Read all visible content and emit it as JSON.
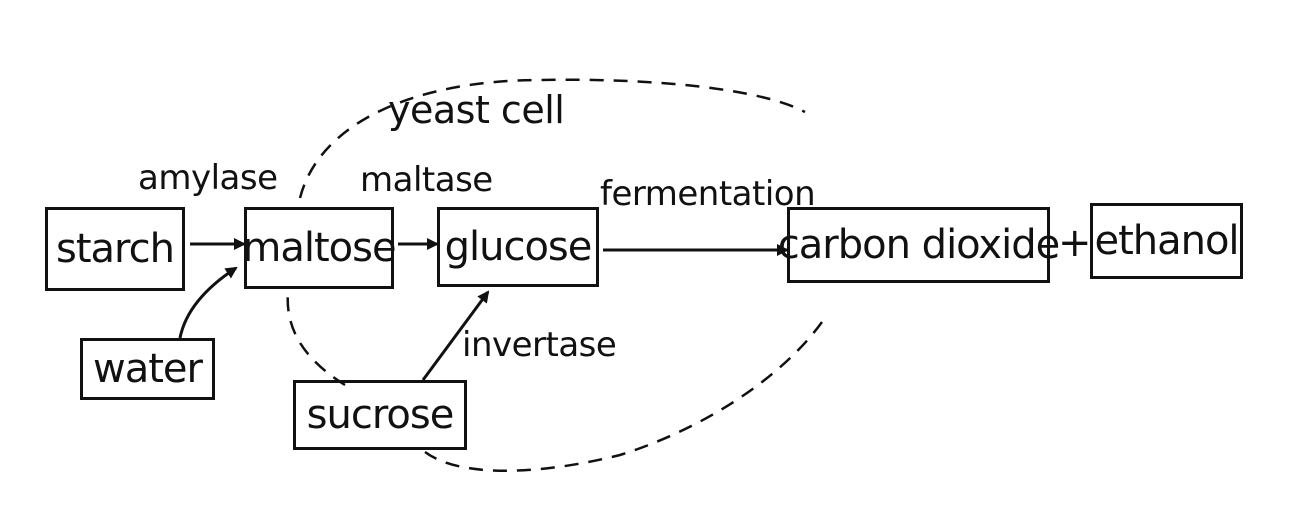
{
  "nodes": {
    "starch": "starch",
    "maltose": "maltose",
    "glucose": "glucose",
    "carbon_dioxide": "carbon dioxide",
    "ethanol": "ethanol",
    "water": "water",
    "sucrose": "sucrose"
  },
  "labels": {
    "yeast_cell": "yeast cell",
    "amylase": "amylase",
    "maltase": "maltase",
    "fermentation": "fermentation",
    "invertase": "invertase",
    "plus": "+"
  }
}
